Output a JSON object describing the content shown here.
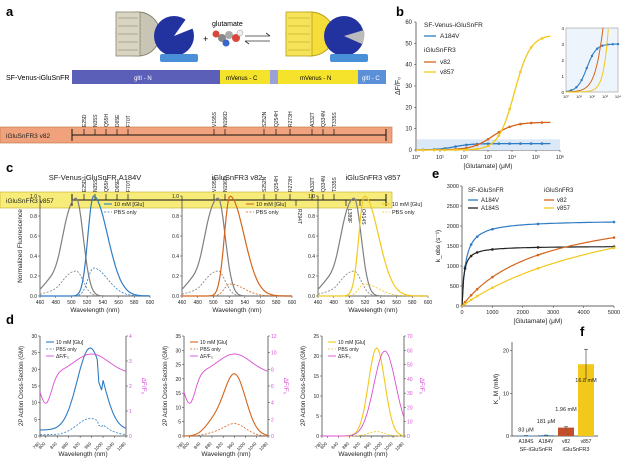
{
  "panel_labels": {
    "a": "a",
    "b": "b",
    "c": "c",
    "d": "d",
    "e": "e",
    "f": "f"
  },
  "colors": {
    "blue": "#2f7cc4",
    "black": "#222222",
    "orange": "#d4651c",
    "yellow": "#f2c81a",
    "gray": "#7f7f7f",
    "magenta": "#d94fd4",
    "bar_red": "#c0502a",
    "bar_blue": "#2f7cc4",
    "bar_yellow": "#f2c81a"
  },
  "panel_a": {
    "glutamate_label": "glutamate",
    "construct_label": "SF-Venus-iGluSnFR",
    "segments": [
      "gltI - N",
      "mVenus - C",
      "mVenus - N",
      "gltI - C"
    ],
    "variants": [
      {
        "name": "iGluSnFR3 v82",
        "top_mutations": [
          "E25D",
          "N35S",
          "Q55H",
          "D65E",
          "F70T",
          "V195S",
          "N196D",
          "S252N",
          "Q254H",
          "R273H",
          "A332T",
          "Q334N",
          "T335S"
        ],
        "bottom_mutations": []
      },
      {
        "name": "iGluSnFR3 v857",
        "top_mutations": [
          "E25D",
          "N35S",
          "Q55H",
          "D65E",
          "F70T",
          "V195S",
          "N196D",
          "S252N",
          "Q254H",
          "R273H",
          "A332T",
          "Q334N",
          "T335S"
        ],
        "bottom_mutations": [
          "R294T",
          "L389F",
          "Q414S"
        ]
      }
    ]
  },
  "panel_b": {
    "legend": {
      "group1": "SF-Venus-iGluSnFR",
      "s1": "A184V",
      "group2": "iGluSnFR3",
      "s2": "v82",
      "s3": "v857"
    },
    "ylabel": "ΔF/F₀",
    "xlabel": "[Glutamate] (μM)",
    "yticks": [
      "0",
      "10",
      "20",
      "30",
      "40",
      "50",
      "60"
    ],
    "xticks": [
      "10⁰",
      "10¹",
      "10²",
      "10³",
      "10⁴",
      "10⁵",
      "10⁶"
    ],
    "inset_yticks": [
      "0",
      "1",
      "2",
      "3",
      "4"
    ],
    "inset_xticks": [
      "10⁰",
      "10¹",
      "10²",
      "10³",
      "10⁴"
    ]
  },
  "panel_c": {
    "ylabel": "Normalized Fluorescence",
    "xlabel": "Wavelength (nm)",
    "xticks": [
      "460",
      "480",
      "500",
      "520",
      "540",
      "560",
      "580",
      "600"
    ],
    "yticks": [
      "0.0",
      "0.2",
      "0.4",
      "0.6",
      "0.8",
      "1.0"
    ],
    "plots": [
      {
        "title": "SF-Venus-iGluSnFR.A184V",
        "legend": [
          "10 mM [Glu]",
          "PBS only"
        ]
      },
      {
        "title": "iGluSnFR3 v82",
        "legend": [
          "10 mM [Glu]",
          "PBS only"
        ]
      },
      {
        "title": "iGluSnFR3 v857",
        "legend": [
          "10 mM [Glu]",
          "PBS only"
        ]
      }
    ]
  },
  "panel_d": {
    "ylabel": "2P Action Cross-Section (GM)",
    "xlabel": "Wavelength (nm)",
    "right_label": "ΔF/F₀",
    "xticks": [
      "780",
      "800",
      "840",
      "880",
      "920",
      "960",
      "1000",
      "1040",
      "1080"
    ],
    "plots": [
      {
        "legend": [
          "10 mM [Glu]",
          "PBS only",
          "ΔF/F₀"
        ],
        "yticks": [
          "0",
          "5",
          "10",
          "15",
          "20",
          "25",
          "30"
        ],
        "rticks": [
          "0",
          "1",
          "2",
          "3",
          "4"
        ]
      },
      {
        "legend": [
          "10 mM [Glu]",
          "PBS only",
          "ΔF/F₀"
        ],
        "yticks": [
          "0",
          "5",
          "10",
          "15",
          "20",
          "25",
          "30",
          "35"
        ],
        "rticks": [
          "0",
          "2",
          "4",
          "6",
          "8",
          "10",
          "12"
        ]
      },
      {
        "legend": [
          "10 mM [Glu]",
          "PBS only",
          "ΔF/F₀"
        ],
        "yticks": [
          "0",
          "5",
          "10",
          "15",
          "20",
          "25"
        ],
        "rticks": [
          "0",
          "10",
          "20",
          "30",
          "40",
          "50",
          "60",
          "70"
        ]
      }
    ]
  },
  "panel_e": {
    "legend": {
      "group1": "SF-iGluSnFR",
      "s1": "A184V",
      "s2": "A184S",
      "group2": "iGluSnFR3",
      "s3": "v82",
      "s4": "v857"
    },
    "ylabel": "k_obs (s⁻¹)",
    "xlabel": "[Glutamate] (μM)",
    "yticks": [
      "0",
      "500",
      "1000",
      "1500",
      "2000",
      "2500",
      "3000"
    ],
    "xticks": [
      "0",
      "1000",
      "2000",
      "3000",
      "4000",
      "5000"
    ]
  },
  "chart_data": [
    {
      "type": "bar",
      "categories": [
        "A184S",
        "A184V",
        "v82",
        "v857"
      ],
      "values": [
        0.083,
        0.181,
        1.96,
        16.8
      ],
      "value_labels": [
        "83 μM",
        "181 μM",
        "1.96 mM",
        "16.8 mM"
      ],
      "errors": [
        0.02,
        0.03,
        0.2,
        3.5
      ],
      "ylabel": "K_M (mM)",
      "yticks": [
        "0",
        "10",
        "20"
      ],
      "ylim": [
        0,
        22
      ],
      "group_labels": [
        "SF-iGluSnFR",
        "iGluSnFR3"
      ]
    }
  ]
}
